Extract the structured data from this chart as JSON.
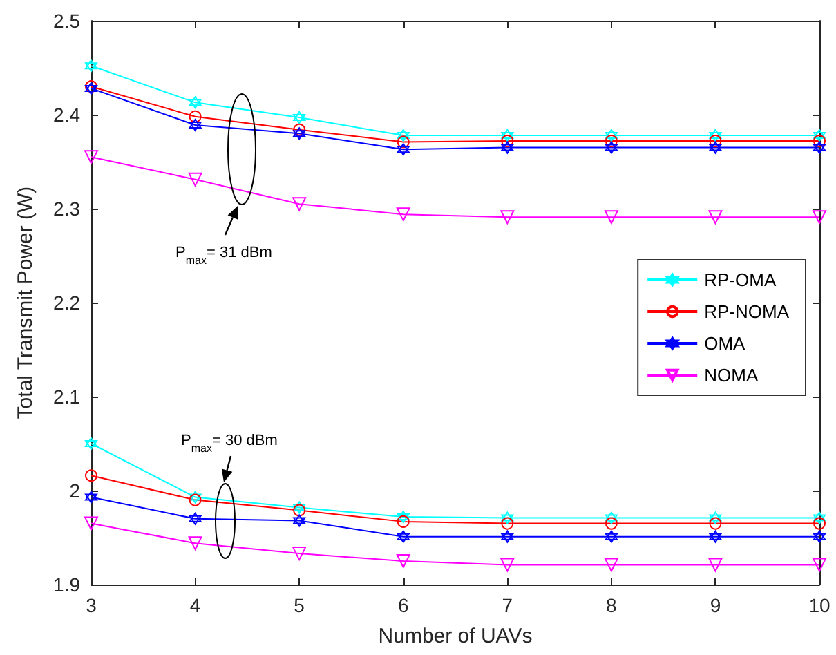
{
  "chart_data": {
    "type": "line",
    "xlabel": "Number of UAVs",
    "ylabel": "Total Transmit Power (W)",
    "x": [
      3,
      4,
      5,
      6,
      7,
      8,
      9,
      10
    ],
    "xlim": [
      3,
      10
    ],
    "xticks": [
      3,
      4,
      5,
      6,
      7,
      8,
      9,
      10
    ],
    "ylim": [
      1.9,
      2.5
    ],
    "yticks": [
      1.9,
      2,
      2.1,
      2.2,
      2.3,
      2.4,
      2.5
    ],
    "grid": false,
    "legend": "right",
    "series": [
      {
        "name": "RP-OMA",
        "color": "#00ffff",
        "marker": "star",
        "values": [
          2.452,
          2.413,
          2.397,
          2.378,
          2.378,
          2.378,
          2.378,
          2.378
        ]
      },
      {
        "name": "RP-NOMA",
        "color": "#ff0000",
        "marker": "circle",
        "values": [
          2.43,
          2.398,
          2.384,
          2.371,
          2.372,
          2.372,
          2.372,
          2.372
        ]
      },
      {
        "name": "OMA",
        "color": "#0000ff",
        "marker": "star",
        "values": [
          2.428,
          2.389,
          2.38,
          2.363,
          2.365,
          2.365,
          2.365,
          2.365
        ]
      },
      {
        "name": "NOMA",
        "color": "#ff00ff",
        "marker": "triangle",
        "values": [
          2.355,
          2.331,
          2.305,
          2.294,
          2.291,
          2.291,
          2.291,
          2.291
        ]
      },
      {
        "color": "#00ffff",
        "marker": "star",
        "values": [
          2.05,
          1.993,
          1.982,
          1.972,
          1.971,
          1.971,
          1.971,
          1.971
        ]
      },
      {
        "color": "#ff0000",
        "marker": "circle",
        "values": [
          2.016,
          1.99,
          1.979,
          1.967,
          1.965,
          1.965,
          1.965,
          1.965
        ]
      },
      {
        "color": "#0000ff",
        "marker": "star",
        "values": [
          1.993,
          1.97,
          1.968,
          1.951,
          1.951,
          1.951,
          1.951,
          1.951
        ]
      },
      {
        "color": "#ff00ff",
        "marker": "triangle",
        "values": [
          1.965,
          1.944,
          1.933,
          1.925,
          1.921,
          1.921,
          1.921,
          1.921
        ]
      }
    ],
    "annotations": [
      "P$_{max}$= 31 dBm",
      "P$_{max}$= 30 dBm"
    ]
  }
}
